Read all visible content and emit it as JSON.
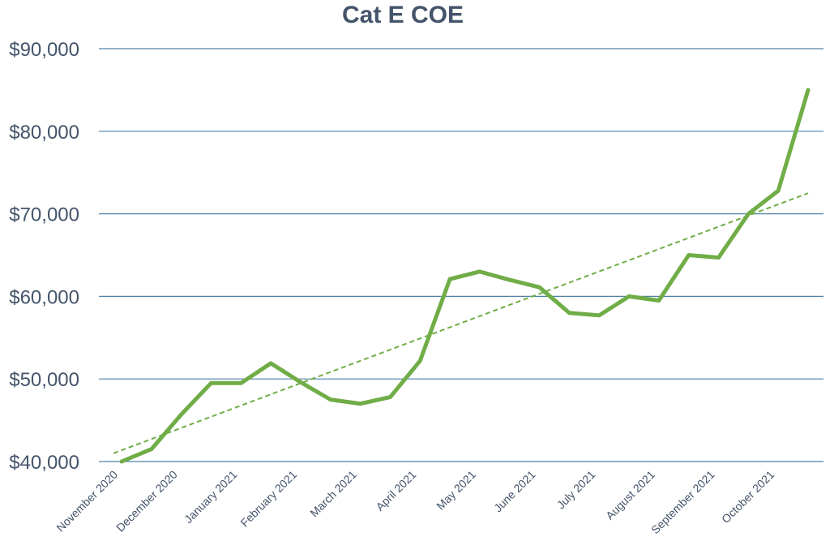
{
  "chart_data": {
    "type": "line",
    "title": "Cat E COE",
    "xlabel": "",
    "ylabel": "",
    "ylim": [
      40000,
      90000
    ],
    "yticks": [
      40000,
      50000,
      60000,
      70000,
      80000,
      90000
    ],
    "ytick_labels": [
      "$40,000",
      "$50,000",
      "$60,000",
      "$70,000",
      "$80,000",
      "$90,000"
    ],
    "categories": [
      "November 2020",
      "",
      "December 2020",
      "",
      "January 2021",
      "",
      "February 2021",
      "",
      "March 2021",
      "",
      "April 2021",
      "",
      "May 2021",
      "",
      "June 2021",
      "",
      "July 2021",
      "",
      "August 2021",
      "",
      "September 2021",
      "",
      "October 2021",
      ""
    ],
    "x_tick_labels": [
      "November 2020",
      "December 2020",
      "January 2021",
      "February 2021",
      "March 2021",
      "April 2021",
      "May 2021",
      "June 2021",
      "July 2021",
      "August 2021",
      "September 2021",
      "October 2021"
    ],
    "series": [
      {
        "values": [
          40000,
          41500,
          45700,
          49500,
          49500,
          51900,
          49600,
          47500,
          47000,
          47800,
          52200,
          62100,
          63000,
          62000,
          61100,
          58000,
          57700,
          60000,
          59500,
          65000,
          64700,
          70000,
          72800,
          85000
        ],
        "color": "#70AD47"
      }
    ],
    "trendline": {
      "type": "linear",
      "start": 41000,
      "end": 72500,
      "color": "#70AD47",
      "style": "dashed"
    },
    "grid": true,
    "legend": "none"
  }
}
